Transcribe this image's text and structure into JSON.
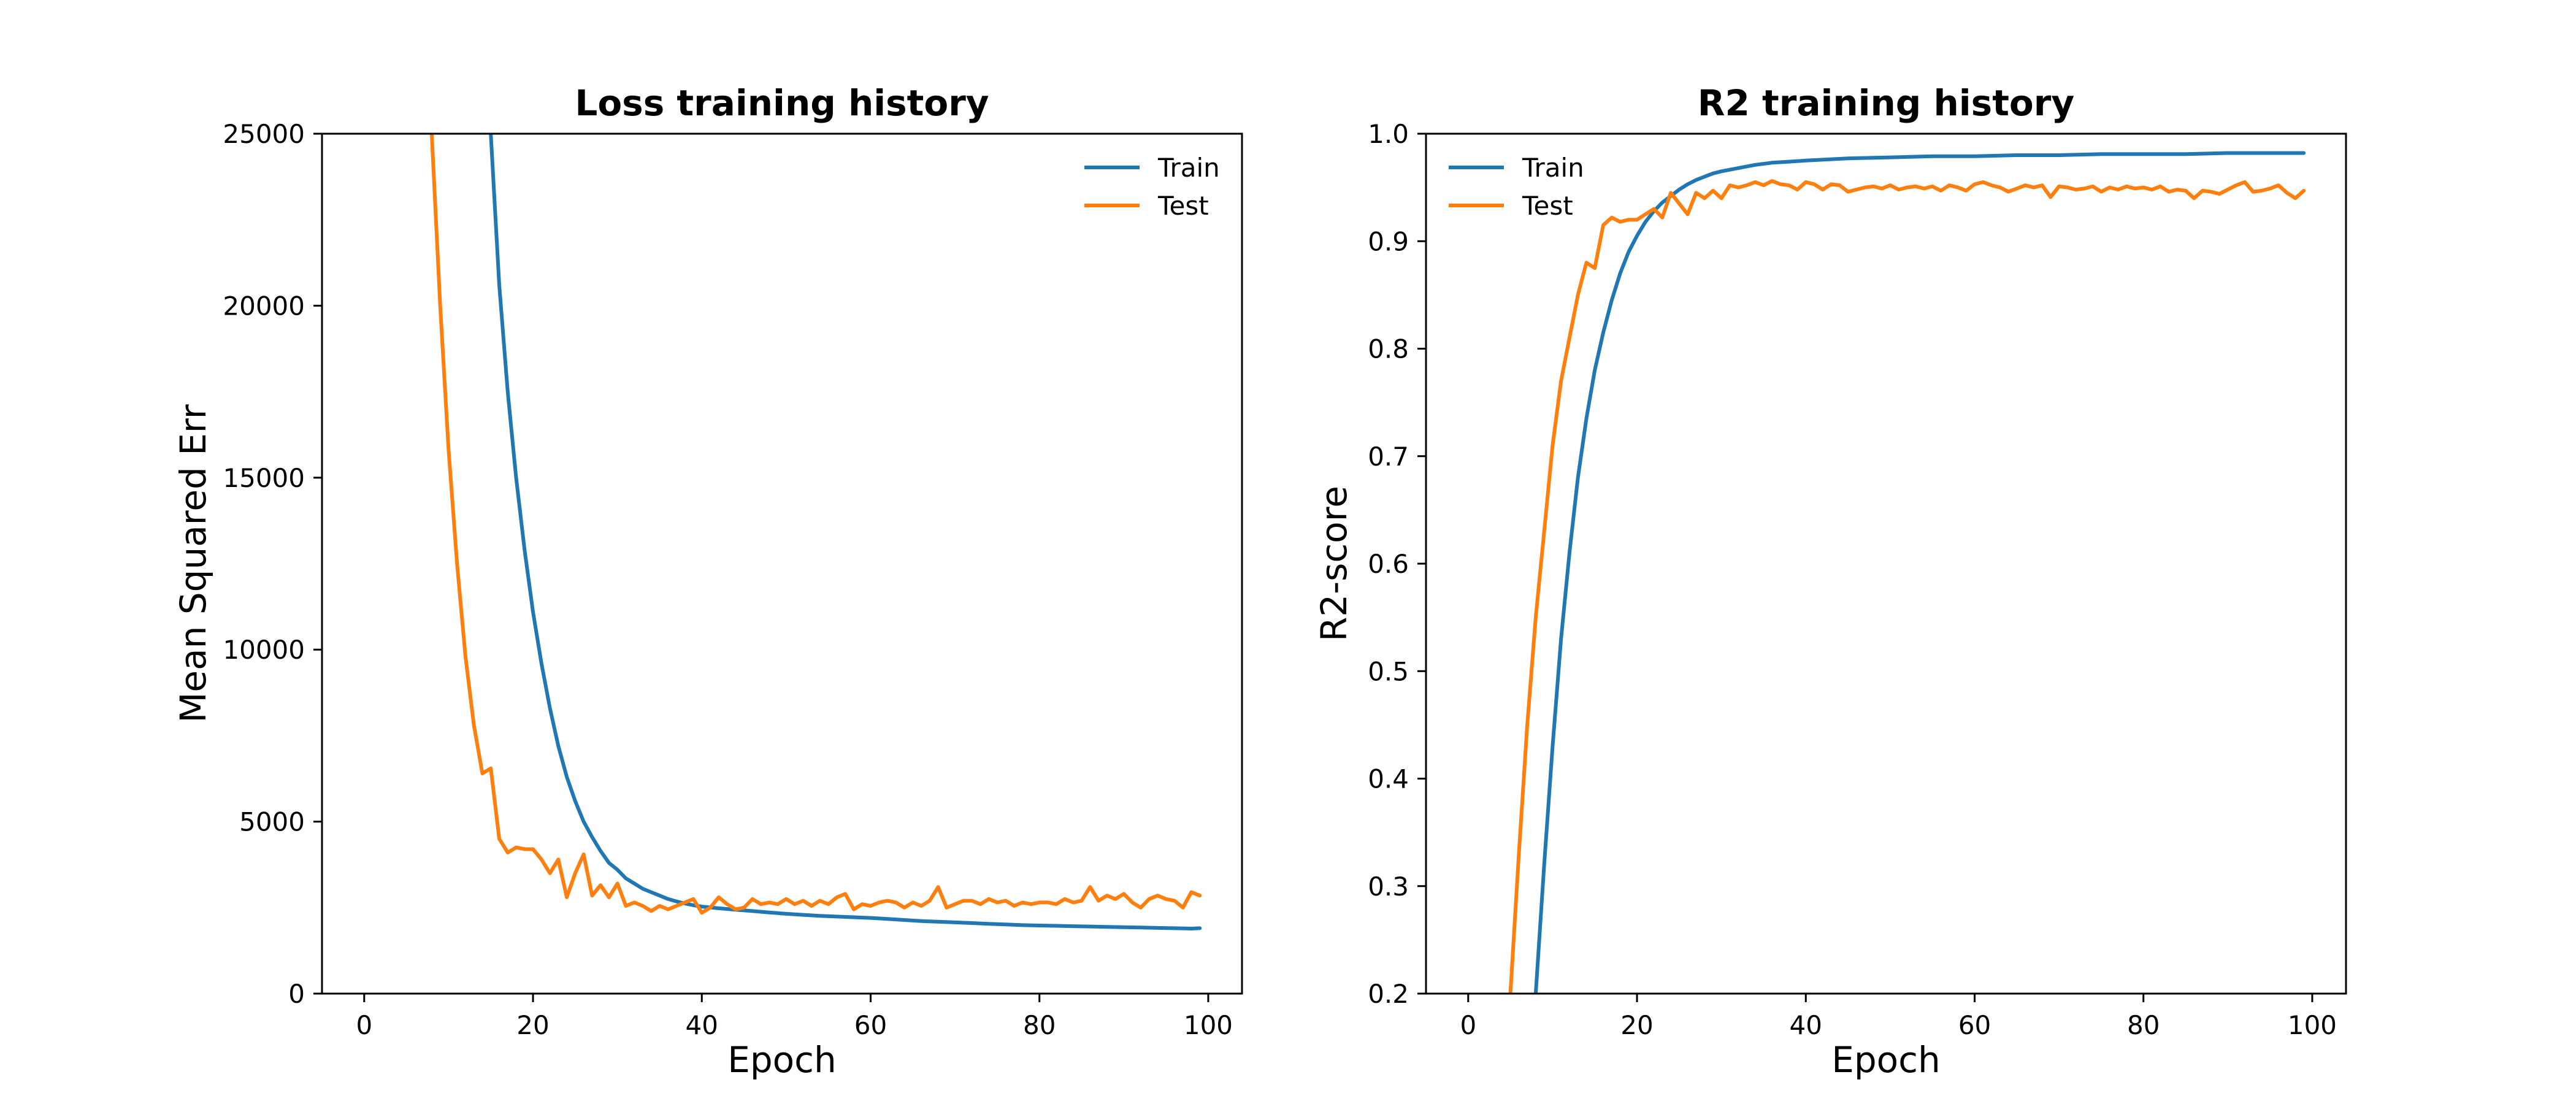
{
  "chart_data": [
    {
      "type": "line",
      "title": "Loss training history",
      "xlabel": "Epoch",
      "ylabel": "Mean Squared Err",
      "xlim": [
        -5,
        104
      ],
      "ylim": [
        0,
        25000
      ],
      "xticks": [
        0,
        20,
        40,
        60,
        80,
        100
      ],
      "yticks": [
        0,
        5000,
        10000,
        15000,
        20000,
        25000
      ],
      "grid": false,
      "legend": "upper right",
      "series": [
        {
          "name": "Train",
          "color": "#1f77b4",
          "x": [
            15,
            16,
            17,
            18,
            19,
            20,
            21,
            22,
            23,
            24,
            25,
            26,
            27,
            28,
            29,
            30,
            31,
            32,
            33,
            34,
            35,
            36,
            37,
            38,
            39,
            40,
            42,
            44,
            46,
            48,
            50,
            52,
            54,
            56,
            58,
            60,
            62,
            64,
            66,
            68,
            70,
            72,
            74,
            76,
            78,
            80,
            82,
            84,
            86,
            88,
            90,
            92,
            94,
            96,
            98,
            99
          ],
          "y": [
            25000,
            20600,
            17500,
            15000,
            12900,
            11100,
            9600,
            8300,
            7200,
            6300,
            5600,
            5000,
            4550,
            4150,
            3800,
            3600,
            3350,
            3200,
            3050,
            2950,
            2850,
            2750,
            2680,
            2620,
            2570,
            2530,
            2480,
            2440,
            2400,
            2360,
            2320,
            2290,
            2260,
            2240,
            2220,
            2200,
            2170,
            2140,
            2110,
            2090,
            2070,
            2050,
            2030,
            2010,
            1990,
            1980,
            1970,
            1960,
            1950,
            1940,
            1930,
            1920,
            1910,
            1900,
            1890,
            1900
          ]
        },
        {
          "name": "Test",
          "color": "#ff7f0e",
          "x": [
            8,
            9,
            10,
            11,
            12,
            13,
            14,
            15,
            16,
            17,
            18,
            19,
            20,
            21,
            22,
            23,
            24,
            25,
            26,
            27,
            28,
            29,
            30,
            31,
            32,
            33,
            34,
            35,
            36,
            37,
            38,
            39,
            40,
            41,
            42,
            43,
            44,
            45,
            46,
            47,
            48,
            49,
            50,
            51,
            52,
            53,
            54,
            55,
            56,
            57,
            58,
            59,
            60,
            61,
            62,
            63,
            64,
            65,
            66,
            67,
            68,
            69,
            70,
            71,
            72,
            73,
            74,
            75,
            76,
            77,
            78,
            79,
            80,
            81,
            82,
            83,
            84,
            85,
            86,
            87,
            88,
            89,
            90,
            91,
            92,
            93,
            94,
            95,
            96,
            97,
            98,
            99
          ],
          "y": [
            25000,
            20000,
            15800,
            12500,
            9800,
            7800,
            6400,
            6550,
            4500,
            4100,
            4250,
            4200,
            4200,
            3900,
            3500,
            3900,
            2800,
            3500,
            4050,
            2850,
            3150,
            2800,
            3200,
            2550,
            2650,
            2550,
            2400,
            2550,
            2450,
            2550,
            2650,
            2750,
            2350,
            2500,
            2800,
            2600,
            2450,
            2500,
            2750,
            2600,
            2650,
            2600,
            2750,
            2600,
            2700,
            2550,
            2700,
            2600,
            2800,
            2900,
            2450,
            2600,
            2550,
            2650,
            2700,
            2650,
            2500,
            2650,
            2550,
            2700,
            3100,
            2500,
            2600,
            2700,
            2700,
            2600,
            2750,
            2650,
            2700,
            2550,
            2650,
            2600,
            2650,
            2650,
            2600,
            2750,
            2650,
            2700,
            3100,
            2700,
            2850,
            2750,
            2900,
            2650,
            2500,
            2750,
            2850,
            2750,
            2700,
            2500,
            2950,
            2850
          ]
        }
      ]
    },
    {
      "type": "line",
      "title": "R2 training history",
      "xlabel": "Epoch",
      "ylabel": "R2-score",
      "xlim": [
        -5,
        104
      ],
      "ylim": [
        0.2,
        1.0
      ],
      "xticks": [
        0,
        20,
        40,
        60,
        80,
        100
      ],
      "yticks": [
        0.2,
        0.3,
        0.4,
        0.5,
        0.6,
        0.7,
        0.8,
        0.9,
        1.0
      ],
      "grid": false,
      "legend": "upper left",
      "series": [
        {
          "name": "Train",
          "color": "#1f77b4",
          "x": [
            8,
            9,
            10,
            11,
            12,
            13,
            14,
            15,
            16,
            17,
            18,
            19,
            20,
            21,
            22,
            23,
            24,
            25,
            26,
            27,
            28,
            29,
            30,
            32,
            34,
            36,
            38,
            40,
            45,
            50,
            55,
            60,
            65,
            70,
            75,
            80,
            85,
            90,
            95,
            99
          ],
          "y": [
            0.2,
            0.32,
            0.43,
            0.53,
            0.61,
            0.68,
            0.735,
            0.78,
            0.815,
            0.845,
            0.87,
            0.89,
            0.905,
            0.918,
            0.928,
            0.936,
            0.942,
            0.948,
            0.953,
            0.957,
            0.96,
            0.963,
            0.965,
            0.968,
            0.971,
            0.973,
            0.974,
            0.975,
            0.977,
            0.978,
            0.979,
            0.979,
            0.98,
            0.98,
            0.981,
            0.981,
            0.981,
            0.982,
            0.982,
            0.982
          ]
        },
        {
          "name": "Test",
          "color": "#ff7f0e",
          "x": [
            5,
            6,
            7,
            8,
            9,
            10,
            11,
            12,
            13,
            14,
            15,
            16,
            17,
            18,
            19,
            20,
            21,
            22,
            23,
            24,
            25,
            26,
            27,
            28,
            29,
            30,
            31,
            32,
            33,
            34,
            35,
            36,
            37,
            38,
            39,
            40,
            41,
            42,
            43,
            44,
            45,
            46,
            47,
            48,
            49,
            50,
            51,
            52,
            53,
            54,
            55,
            56,
            57,
            58,
            59,
            60,
            61,
            62,
            63,
            64,
            65,
            66,
            67,
            68,
            69,
            70,
            71,
            72,
            73,
            74,
            75,
            76,
            77,
            78,
            79,
            80,
            81,
            82,
            83,
            84,
            85,
            86,
            87,
            88,
            89,
            90,
            91,
            92,
            93,
            94,
            95,
            96,
            97,
            98,
            99
          ],
          "y": [
            0.2,
            0.33,
            0.45,
            0.55,
            0.63,
            0.71,
            0.77,
            0.81,
            0.85,
            0.88,
            0.875,
            0.915,
            0.922,
            0.918,
            0.92,
            0.92,
            0.925,
            0.93,
            0.922,
            0.945,
            0.935,
            0.925,
            0.945,
            0.94,
            0.947,
            0.94,
            0.952,
            0.95,
            0.952,
            0.955,
            0.952,
            0.956,
            0.953,
            0.952,
            0.948,
            0.955,
            0.953,
            0.948,
            0.953,
            0.952,
            0.946,
            0.948,
            0.95,
            0.951,
            0.949,
            0.952,
            0.948,
            0.95,
            0.951,
            0.949,
            0.951,
            0.947,
            0.952,
            0.95,
            0.947,
            0.953,
            0.955,
            0.952,
            0.95,
            0.946,
            0.949,
            0.952,
            0.95,
            0.952,
            0.941,
            0.951,
            0.95,
            0.948,
            0.949,
            0.951,
            0.946,
            0.95,
            0.948,
            0.951,
            0.949,
            0.95,
            0.948,
            0.951,
            0.946,
            0.948,
            0.947,
            0.94,
            0.947,
            0.946,
            0.944,
            0.948,
            0.952,
            0.955,
            0.946,
            0.947,
            0.949,
            0.952,
            0.945,
            0.94,
            0.947
          ]
        }
      ]
    }
  ]
}
